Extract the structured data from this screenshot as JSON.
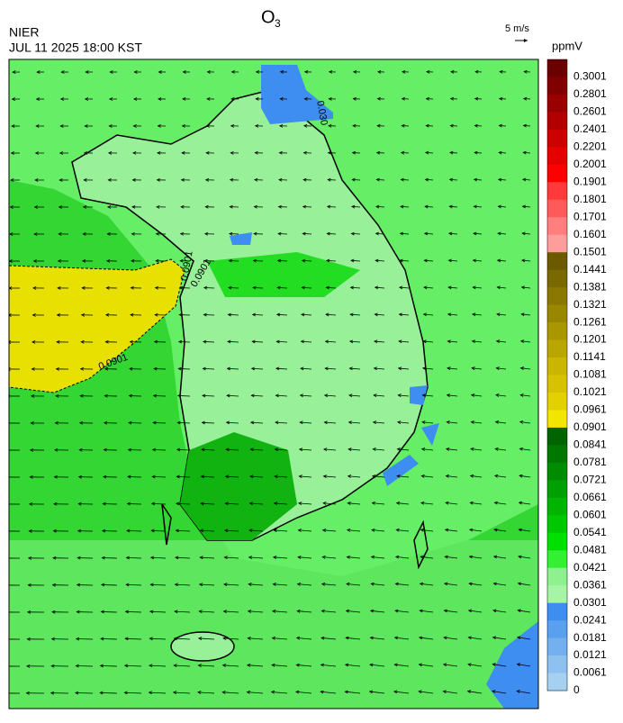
{
  "header": {
    "title": {
      "text": "O",
      "subscript": "3"
    },
    "agency": "NIER",
    "timestamp": "JUL 11 2025 18:00 KST",
    "wind_scale": "5 m/s"
  },
  "map": {
    "contour_labels": [
      "0.0901",
      "0.0901",
      "0.0901",
      "0.030"
    ]
  },
  "colorbar": {
    "unit": "ppmV",
    "levels": [
      {
        "label": "0.3001",
        "color": "#6a0000"
      },
      {
        "label": "0.2801",
        "color": "#800000"
      },
      {
        "label": "0.2601",
        "color": "#990000"
      },
      {
        "label": "0.2401",
        "color": "#b20000"
      },
      {
        "label": "0.2201",
        "color": "#cc0000"
      },
      {
        "label": "0.2001",
        "color": "#e50000"
      },
      {
        "label": "0.1901",
        "color": "#ff0000"
      },
      {
        "label": "0.1801",
        "color": "#ff3a3a"
      },
      {
        "label": "0.1701",
        "color": "#ff5a5a"
      },
      {
        "label": "0.1601",
        "color": "#ff7f7f"
      },
      {
        "label": "0.1501",
        "color": "#ff9d9d"
      },
      {
        "label": "0.1441",
        "color": "#6b5a00"
      },
      {
        "label": "0.1381",
        "color": "#7a6800"
      },
      {
        "label": "0.1321",
        "color": "#8a7800"
      },
      {
        "label": "0.1261",
        "color": "#9a8700"
      },
      {
        "label": "0.1201",
        "color": "#aa9700"
      },
      {
        "label": "0.1141",
        "color": "#baa600"
      },
      {
        "label": "0.1081",
        "color": "#cab600"
      },
      {
        "label": "0.1021",
        "color": "#d6c200"
      },
      {
        "label": "0.0961",
        "color": "#e3d000"
      },
      {
        "label": "0.0901",
        "color": "#f2e600"
      },
      {
        "label": "0.0841",
        "color": "#006400"
      },
      {
        "label": "0.0781",
        "color": "#007800"
      },
      {
        "label": "0.0721",
        "color": "#008c00"
      },
      {
        "label": "0.0661",
        "color": "#00a000"
      },
      {
        "label": "0.0601",
        "color": "#00b400"
      },
      {
        "label": "0.0541",
        "color": "#00c800"
      },
      {
        "label": "0.0481",
        "color": "#00e000"
      },
      {
        "label": "0.0421",
        "color": "#33f033"
      },
      {
        "label": "0.0361",
        "color": "#8ef08e"
      },
      {
        "label": "0.0301",
        "color": "#a6f5a6"
      },
      {
        "label": "0.0241",
        "color": "#3d8ef0"
      },
      {
        "label": "0.0181",
        "color": "#5aa0f0"
      },
      {
        "label": "0.0121",
        "color": "#74b0f0"
      },
      {
        "label": "0.0061",
        "color": "#8ec0f0"
      },
      {
        "label": "0",
        "color": "#a6d0f0"
      }
    ]
  }
}
